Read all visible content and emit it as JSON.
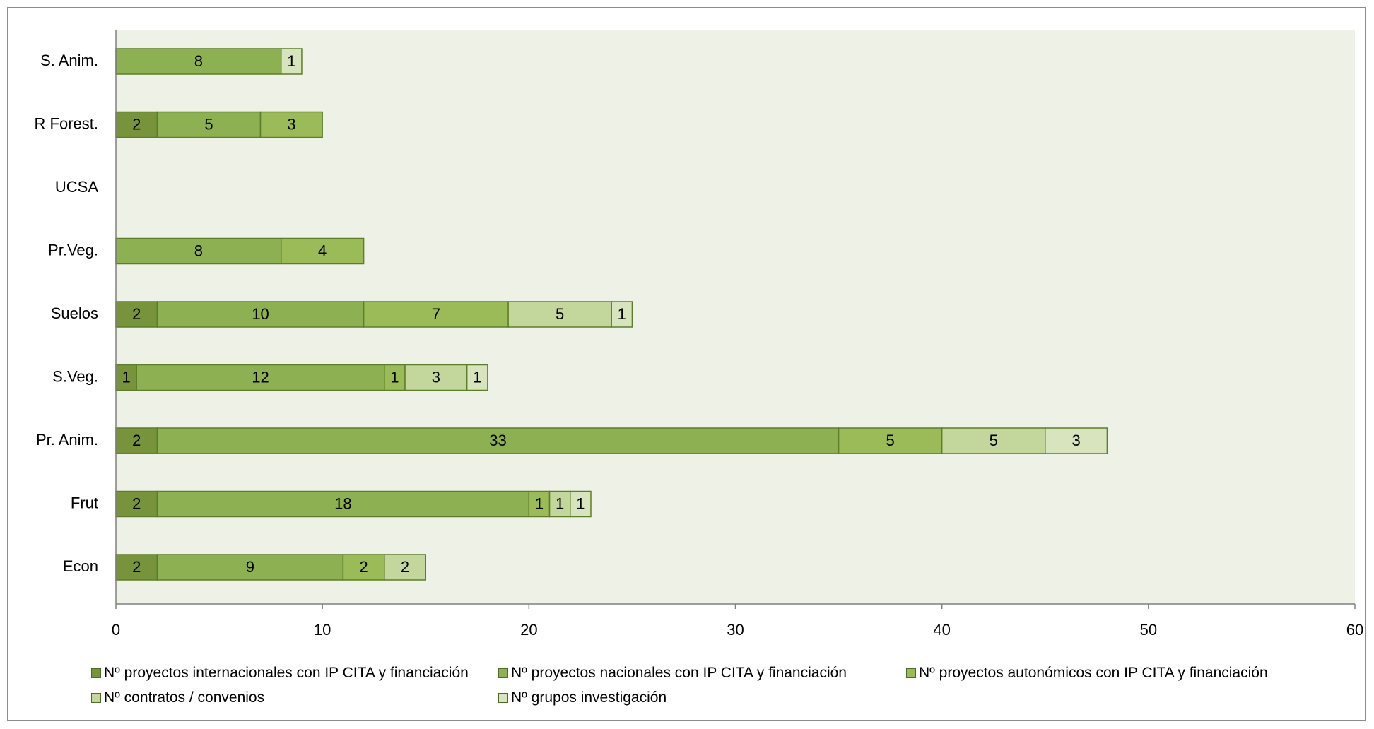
{
  "chart_data": {
    "type": "bar",
    "orientation": "horizontal",
    "stacked": true,
    "categories": [
      "S. Anim.",
      "R Forest.",
      "UCSA",
      "Pr.Veg.",
      "Suelos",
      "S.Veg.",
      "Pr. Anim.",
      "Frut",
      "Econ"
    ],
    "series": [
      {
        "name": "Nº proyectos internacionales con IP CITA y financiación",
        "color": "#77933c",
        "values": [
          0,
          2,
          0,
          0,
          2,
          1,
          2,
          2,
          2
        ]
      },
      {
        "name": "Nº proyectos nacionales con IP CITA y financiación",
        "color": "#8db052",
        "values": [
          8,
          5,
          0,
          8,
          10,
          12,
          33,
          18,
          9
        ]
      },
      {
        "name": "Nº proyectos autonómicos con IP CITA y financiación",
        "color": "#9bbb59",
        "values": [
          0,
          3,
          0,
          4,
          7,
          1,
          5,
          1,
          2
        ]
      },
      {
        "name": "Nº contratos / convenios",
        "color": "#c3d69b",
        "values": [
          0,
          0,
          0,
          0,
          5,
          3,
          5,
          1,
          2
        ]
      },
      {
        "name": "Nº grupos investigación",
        "color": "#d7e4bd",
        "values": [
          1,
          0,
          0,
          0,
          1,
          1,
          3,
          1,
          0
        ]
      }
    ],
    "xlim": [
      0,
      60
    ],
    "xticks": [
      "0",
      "10",
      "20",
      "30",
      "40",
      "50",
      "60"
    ],
    "plot_background": "#eef2e6",
    "grid": false,
    "legend_position": "bottom"
  }
}
